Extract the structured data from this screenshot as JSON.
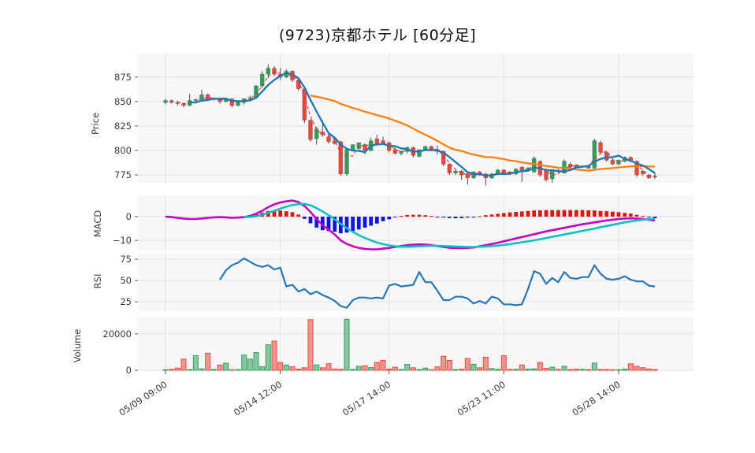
{
  "chart_data": {
    "type": "candlestick+indicators",
    "title": "(9723)京都ホテル [60分足]",
    "panels": {
      "price": {
        "label": "Price",
        "yticks": [
          875,
          850,
          825,
          800,
          775
        ],
        "range": [
          767,
          899
        ]
      },
      "macd": {
        "label": "MACD",
        "yticks": [
          0,
          -10
        ],
        "range": [
          -14.3,
          9
        ]
      },
      "rsi": {
        "label": "RSI",
        "yticks": [
          75,
          50,
          25
        ],
        "range": [
          14,
          81.5
        ]
      },
      "volume": {
        "label": "Volume",
        "yticks": [
          20000,
          0
        ],
        "range": [
          0,
          29000
        ]
      }
    },
    "x_ticks": {
      "indices": [
        0,
        19,
        37,
        56,
        75
      ],
      "labels": [
        "05/09 09:00",
        "05/14 12:00",
        "05/17 14:00",
        "05/23 11:00",
        "05/28 14:00"
      ]
    },
    "ma_periods": {
      "short_dashed": 3,
      "mid": 5,
      "long": 25
    },
    "ohlc": [
      [
        849,
        853,
        847,
        851
      ],
      [
        851,
        852,
        848,
        849
      ],
      [
        849,
        851,
        846,
        848
      ],
      [
        848,
        849,
        844,
        846
      ],
      [
        846,
        858,
        845,
        851
      ],
      [
        851,
        853,
        848,
        852
      ],
      [
        852,
        862,
        850,
        857
      ],
      [
        857,
        858,
        851,
        852
      ],
      [
        852,
        854,
        851,
        853
      ],
      [
        853,
        854,
        848,
        850
      ],
      [
        850,
        854,
        849,
        853
      ],
      [
        853,
        853,
        844,
        846
      ],
      [
        846,
        851,
        845,
        850
      ],
      [
        849,
        853,
        847,
        853
      ],
      [
        853,
        856,
        852,
        854
      ],
      [
        854,
        867,
        853,
        866
      ],
      [
        866,
        881,
        864,
        878
      ],
      [
        878,
        888,
        874,
        884
      ],
      [
        884,
        886,
        876,
        878
      ],
      [
        878,
        884,
        872,
        875
      ],
      [
        875,
        883,
        874,
        881
      ],
      [
        881,
        882,
        870,
        872
      ],
      [
        872,
        874,
        861,
        863
      ],
      [
        863,
        865,
        828,
        831
      ],
      [
        831,
        832,
        809,
        811
      ],
      [
        812,
        824,
        806,
        822
      ],
      [
        819,
        831,
        814,
        816
      ],
      [
        814,
        817,
        807,
        809
      ],
      [
        810,
        812,
        806,
        807
      ],
      [
        809,
        810,
        774,
        776
      ],
      [
        776,
        803,
        774,
        801
      ],
      [
        801,
        806,
        799,
        806
      ],
      [
        802,
        808,
        800,
        808
      ],
      [
        806,
        807,
        796,
        800
      ],
      [
        800,
        813,
        799,
        810
      ],
      [
        812,
        816,
        805,
        807
      ],
      [
        810,
        814,
        806,
        808
      ],
      [
        808,
        809,
        798,
        800
      ],
      [
        801,
        803,
        796,
        797
      ],
      [
        797,
        800,
        795,
        799
      ],
      [
        799,
        804,
        797,
        803
      ],
      [
        803,
        804,
        793,
        795
      ],
      [
        794,
        801,
        793,
        801
      ],
      [
        801,
        805,
        800,
        804
      ],
      [
        804,
        805,
        799,
        800
      ],
      [
        801,
        805,
        796,
        799
      ],
      [
        799,
        800,
        784,
        786
      ],
      [
        786,
        787,
        775,
        777
      ],
      [
        777,
        780,
        775,
        779
      ],
      [
        779,
        780,
        770,
        775
      ],
      [
        776,
        777,
        765,
        772
      ],
      [
        772,
        779,
        771,
        778
      ],
      [
        778,
        779,
        774,
        775
      ],
      [
        776,
        777,
        764,
        772
      ],
      [
        772,
        777,
        771,
        776
      ],
      [
        776,
        781,
        775,
        780
      ],
      [
        780,
        781,
        776,
        777
      ],
      [
        778,
        779,
        775,
        776
      ],
      [
        776,
        782,
        775,
        781
      ],
      [
        783,
        784,
        768,
        780
      ],
      [
        780,
        783,
        779,
        782
      ],
      [
        778,
        794,
        777,
        792
      ],
      [
        789,
        790,
        773,
        775
      ],
      [
        780,
        782,
        768,
        770
      ],
      [
        771,
        781,
        767,
        780
      ],
      [
        780,
        781,
        777,
        778
      ],
      [
        777,
        791,
        776,
        789
      ],
      [
        786,
        788,
        782,
        783
      ],
      [
        785,
        786,
        782,
        783
      ],
      [
        783,
        785,
        782,
        784
      ],
      [
        784,
        785,
        781,
        782
      ],
      [
        782,
        812,
        780,
        810
      ],
      [
        808,
        810,
        797,
        798
      ],
      [
        798,
        799,
        789,
        790
      ],
      [
        790,
        791,
        785,
        786
      ],
      [
        786,
        791,
        785,
        790
      ],
      [
        789,
        794,
        788,
        793
      ],
      [
        793,
        794,
        788,
        789
      ],
      [
        789,
        790,
        773,
        775
      ],
      [
        779,
        780,
        774,
        776
      ],
      [
        775,
        776,
        771,
        772
      ],
      [
        774,
        777,
        771,
        773
      ]
    ],
    "volume": [
      300,
      500,
      1200,
      6100,
      400,
      8000,
      800,
      9400,
      450,
      2900,
      3900,
      300,
      400,
      8300,
      6100,
      9700,
      2000,
      14000,
      16000,
      4300,
      2900,
      1900,
      600,
      1400,
      27800,
      2900,
      1400,
      3600,
      700,
      500,
      28000,
      450,
      2200,
      2450,
      1450,
      4300,
      5400,
      700,
      1700,
      450,
      3200,
      1400,
      450,
      1200,
      300,
      1900,
      7700,
      5400,
      450,
      600,
      6500,
      3300,
      1400,
      7200,
      1000,
      500,
      8000,
      500,
      500,
      2900,
      700,
      800,
      4300,
      1100,
      1700,
      500,
      2200,
      450,
      600,
      500,
      400,
      4000,
      450,
      450,
      300,
      300,
      600,
      3600,
      2200,
      1400,
      700,
      450
    ],
    "macd_line": [
      0,
      -0.2,
      -0.5,
      -0.8,
      -1.0,
      -1.0,
      -0.8,
      -0.5,
      -0.3,
      -0.2,
      -0.3,
      -0.5,
      -0.4,
      -0.2,
      0.3,
      1.2,
      2.5,
      4.0,
      5.2,
      6.0,
      6.5,
      6.8,
      6.2,
      4.5,
      2.0,
      -1.0,
      -3.5,
      -5.5,
      -7.5,
      -10.0,
      -11.5,
      -12.5,
      -13.2,
      -13.6,
      -13.8,
      -13.8,
      -13.5,
      -13.2,
      -12.8,
      -12.4,
      -12.0,
      -11.8,
      -11.7,
      -11.8,
      -12.0,
      -12.4,
      -12.8,
      -13.1,
      -13.3,
      -13.3,
      -13.2,
      -13.0,
      -12.5,
      -12.0,
      -11.5,
      -11.0,
      -10.4,
      -9.8,
      -9.2,
      -8.6,
      -8.0,
      -7.4,
      -6.8,
      -6.2,
      -5.7,
      -5.2,
      -4.7,
      -4.2,
      -3.7,
      -3.2,
      -2.8,
      -2.4,
      -2.0,
      -1.6,
      -1.3,
      -1.0,
      -0.8,
      -0.7,
      -0.8,
      -1.0,
      -1.3,
      -1.6
    ],
    "macd_signal": [
      null,
      null,
      null,
      null,
      null,
      null,
      null,
      null,
      null,
      null,
      null,
      null,
      null,
      -0.2,
      -0.1,
      0.2,
      0.8,
      1.6,
      2.5,
      3.4,
      4.2,
      4.9,
      5.3,
      5.4,
      4.8,
      3.6,
      2.2,
      0.6,
      -1.2,
      -3.0,
      -4.8,
      -6.4,
      -7.8,
      -9.0,
      -10.0,
      -10.9,
      -11.6,
      -12.1,
      -12.5,
      -12.7,
      -12.7,
      -12.6,
      -12.5,
      -12.4,
      -12.3,
      -12.3,
      -12.4,
      -12.5,
      -12.6,
      -12.7,
      -12.8,
      -12.8,
      -12.7,
      -12.6,
      -12.4,
      -12.2,
      -11.9,
      -11.6,
      -11.2,
      -10.8,
      -10.4,
      -10.0,
      -9.5,
      -9.0,
      -8.5,
      -8.0,
      -7.5,
      -7.0,
      -6.5,
      -6.0,
      -5.5,
      -5.0,
      -4.4,
      -3.9,
      -3.4,
      -2.9,
      -2.4,
      -2.0,
      -1.6,
      -1.3,
      -1.1,
      -0.9
    ],
    "rsi": [
      null,
      null,
      null,
      null,
      null,
      null,
      null,
      null,
      null,
      51,
      62,
      68,
      71,
      76,
      72,
      68,
      66,
      68,
      63,
      65,
      43,
      45,
      37,
      40,
      34,
      37,
      33,
      30,
      26,
      20,
      18,
      27,
      30,
      30,
      29,
      30,
      29,
      44,
      46,
      43,
      44,
      45,
      60,
      48,
      48,
      38,
      27,
      27,
      31,
      31,
      29,
      23,
      26,
      23,
      31,
      29,
      22,
      22,
      21,
      22,
      40,
      61,
      58,
      46,
      53,
      48,
      60,
      53,
      52,
      54,
      54,
      68,
      58,
      52,
      51,
      52,
      55,
      51,
      49,
      49,
      44,
      43
    ],
    "colors": {
      "up": "#2da05a",
      "down": "#e8483e",
      "ma_short": "#d62728",
      "ma_mid": "#1f77b4",
      "ma_long": "#ff7f0e",
      "macd": "#c400c4",
      "signal": "#0ec0c4",
      "hist_pos": "#e51212",
      "hist_neg": "#1414e0",
      "rsi": "#2878b5",
      "grid": "#e2e2e2",
      "panel_bg": "#f7f7f8",
      "text": "#3b3b3b",
      "wick": "#4a4a4a"
    }
  }
}
